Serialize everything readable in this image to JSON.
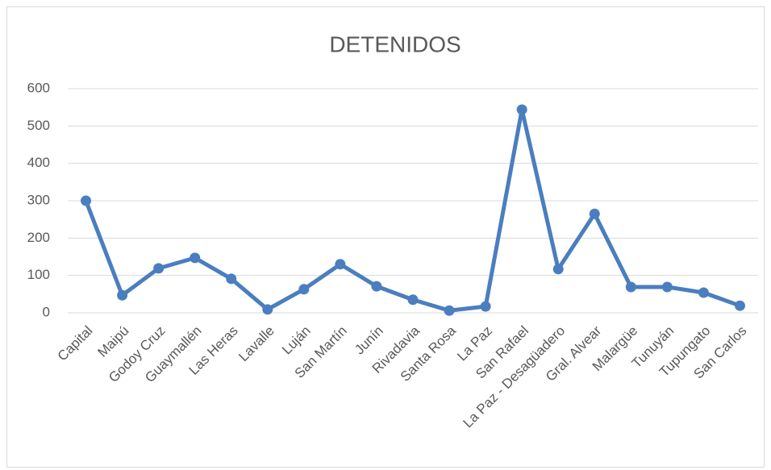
{
  "chart_data": {
    "type": "line",
    "title": "DETENIDOS",
    "categories": [
      "Capital",
      "Maipú",
      "Godoy Cruz",
      "Guaymallén",
      "Las Heras",
      "Lavalle",
      "Luján",
      "San Martín",
      "Junín",
      "Rivadavia",
      "Santa Rosa",
      "La Paz",
      "San Rafael",
      "La Paz - Desagüadero",
      "Gral. Alvear",
      "Malargüe",
      "Tunuyán",
      "Tupungato",
      "San Carlos"
    ],
    "series": [
      {
        "color": "#4a7ebf",
        "values": [
          300,
          47,
          119,
          147,
          91,
          9,
          63,
          130,
          71,
          35,
          6,
          17,
          544,
          117,
          265,
          69,
          69,
          54,
          19
        ]
      }
    ],
    "ylim": [
      0,
      600
    ],
    "yticks": [
      0,
      100,
      200,
      300,
      400,
      500,
      600
    ],
    "grid": true
  }
}
